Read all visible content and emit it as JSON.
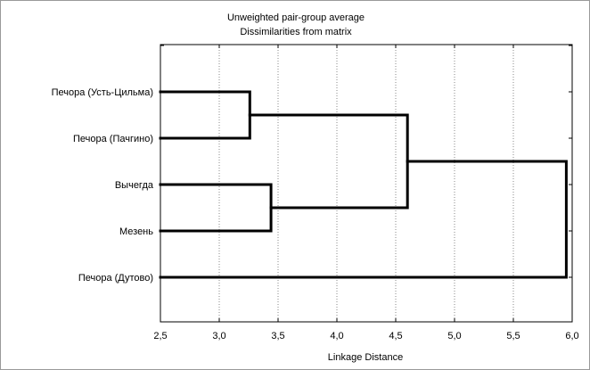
{
  "chart_data": {
    "type": "dendrogram",
    "title": "Unweighted pair-group average",
    "subtitle": "Dissimilarities from matrix",
    "xlabel": "Linkage Distance",
    "xlim": [
      2.5,
      6.0
    ],
    "xticks": [
      {
        "value": 2.5,
        "label": "2,5"
      },
      {
        "value": 3.0,
        "label": "3,0"
      },
      {
        "value": 3.5,
        "label": "3,5"
      },
      {
        "value": 4.0,
        "label": "4,0"
      },
      {
        "value": 4.5,
        "label": "4,5"
      },
      {
        "value": 5.0,
        "label": "5,0"
      },
      {
        "value": 5.5,
        "label": "5,5"
      },
      {
        "value": 6.0,
        "label": "6,0"
      }
    ],
    "grid": true,
    "leaves": [
      "Печора (Усть-Цильма)",
      "Печора (Пачгино)",
      "Вычегда",
      "Мезень",
      "Печора (Дутово)"
    ],
    "merges": [
      {
        "children": [
          0,
          1
        ],
        "distance": 3.26
      },
      {
        "children": [
          2,
          3
        ],
        "distance": 3.44
      },
      {
        "children": [
          5,
          6
        ],
        "distance": 4.6
      },
      {
        "children": [
          7,
          4
        ],
        "distance": 5.95
      }
    ]
  }
}
